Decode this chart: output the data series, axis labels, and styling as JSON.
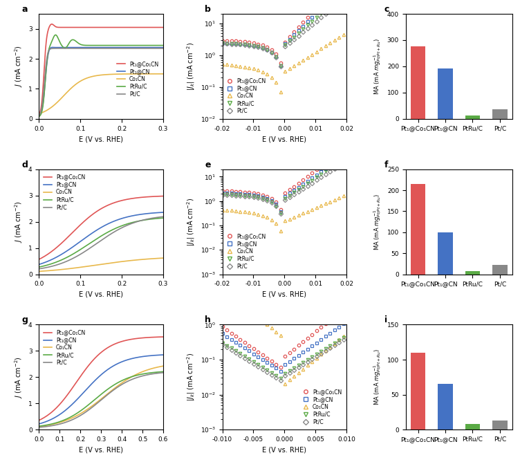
{
  "colors": {
    "Pt1@Co1CN": "#e05555",
    "Pt1@CN": "#4472c4",
    "Co1CN": "#e8b84b",
    "PtRuC": "#5aaa45",
    "PtC": "#888888"
  },
  "bar_colors_list": [
    "#e05555",
    "#4472c4",
    "#5aaa45",
    "#888888"
  ],
  "bar_c_values": [
    275,
    193,
    12,
    37
  ],
  "bar_f_values": [
    215,
    100,
    8,
    23
  ],
  "bar_i_values": [
    110,
    65,
    8,
    13
  ],
  "legend_labels": [
    "Pt₁@Co₁CN",
    "Pt₁@CN",
    "Co₁CN",
    "PtRu/C",
    "Pt/C"
  ],
  "bar_xlabels": [
    "Pt₁@Co₁CN",
    "Pt₁@CN",
    "PtRu/C",
    "Pt/C"
  ],
  "xlabel_E": "E (V vs. RHE)"
}
